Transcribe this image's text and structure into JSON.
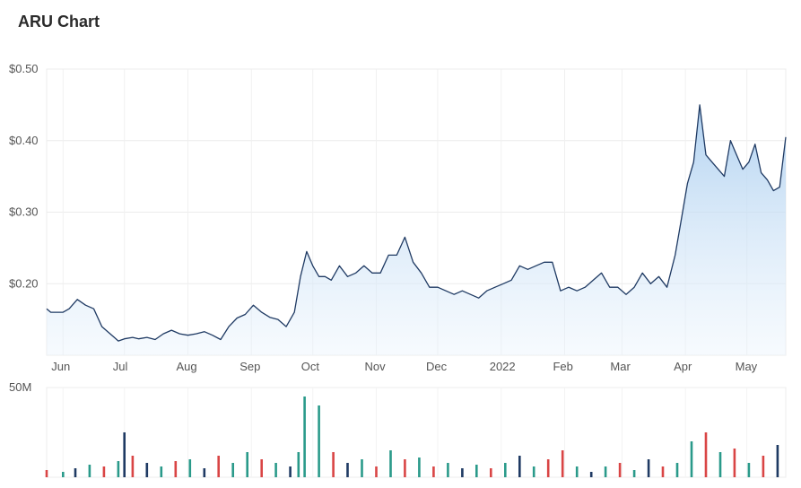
{
  "title": "ARU Chart",
  "chart_data": [
    {
      "type": "area",
      "y_tick_labels": [
        "$0.50",
        "$0.40",
        "$0.30",
        "$0.20"
      ],
      "y_tick_values": [
        0.5,
        0.4,
        0.3,
        0.2
      ],
      "ylim": [
        0.1,
        0.5
      ],
      "x_tick_labels": [
        "Jun",
        "Jul",
        "Aug",
        "Sep",
        "Oct",
        "Nov",
        "Dec",
        "2022",
        "Feb",
        "Mar",
        "Apr",
        "May"
      ],
      "x_tick_dates": [
        "2021-06-01",
        "2021-07-01",
        "2021-08-01",
        "2021-09-01",
        "2021-10-01",
        "2021-11-01",
        "2021-12-01",
        "2022-01-01",
        "2022-02-01",
        "2022-03-01",
        "2022-04-01",
        "2022-05-01"
      ],
      "xlim": [
        "2021-05-24",
        "2022-05-20"
      ],
      "grid": true,
      "line_color": "#1f3a63",
      "fill_color": "#bcd9f2",
      "series": [
        {
          "x": [
            "2021-05-24",
            "2021-05-26",
            "2021-05-28",
            "2021-06-01",
            "2021-06-04",
            "2021-06-08",
            "2021-06-12",
            "2021-06-16",
            "2021-06-20",
            "2021-06-24",
            "2021-06-28",
            "2021-07-01",
            "2021-07-05",
            "2021-07-08",
            "2021-07-12",
            "2021-07-16",
            "2021-07-20",
            "2021-07-24",
            "2021-07-28",
            "2021-08-01",
            "2021-08-05",
            "2021-08-09",
            "2021-08-13",
            "2021-08-17",
            "2021-08-21",
            "2021-08-25",
            "2021-08-29",
            "2021-09-02",
            "2021-09-06",
            "2021-09-10",
            "2021-09-14",
            "2021-09-18",
            "2021-09-22",
            "2021-09-25",
            "2021-09-28",
            "2021-10-01",
            "2021-10-04",
            "2021-10-07",
            "2021-10-10",
            "2021-10-14",
            "2021-10-18",
            "2021-10-22",
            "2021-10-26",
            "2021-10-30",
            "2021-11-03",
            "2021-11-07",
            "2021-11-11",
            "2021-11-15",
            "2021-11-19",
            "2021-11-23",
            "2021-11-27",
            "2021-12-01",
            "2021-12-05",
            "2021-12-09",
            "2021-12-13",
            "2021-12-17",
            "2021-12-21",
            "2021-12-25",
            "2021-12-29",
            "2022-01-02",
            "2022-01-06",
            "2022-01-10",
            "2022-01-14",
            "2022-01-18",
            "2022-01-22",
            "2022-01-26",
            "2022-01-30",
            "2022-02-03",
            "2022-02-07",
            "2022-02-11",
            "2022-02-15",
            "2022-02-19",
            "2022-02-23",
            "2022-02-27",
            "2022-03-03",
            "2022-03-07",
            "2022-03-11",
            "2022-03-15",
            "2022-03-19",
            "2022-03-23",
            "2022-03-27",
            "2022-03-30",
            "2022-04-02",
            "2022-04-05",
            "2022-04-08",
            "2022-04-11",
            "2022-04-14",
            "2022-04-17",
            "2022-04-20",
            "2022-04-23",
            "2022-04-26",
            "2022-04-29",
            "2022-05-02",
            "2022-05-05",
            "2022-05-08",
            "2022-05-11",
            "2022-05-14",
            "2022-05-17",
            "2022-05-20"
          ],
          "values": [
            0.165,
            0.16,
            0.16,
            0.16,
            0.165,
            0.178,
            0.17,
            0.165,
            0.14,
            0.13,
            0.12,
            0.123,
            0.125,
            0.123,
            0.125,
            0.122,
            0.13,
            0.135,
            0.13,
            0.128,
            0.13,
            0.133,
            0.128,
            0.122,
            0.14,
            0.152,
            0.157,
            0.17,
            0.16,
            0.153,
            0.15,
            0.14,
            0.16,
            0.21,
            0.245,
            0.225,
            0.21,
            0.21,
            0.205,
            0.225,
            0.21,
            0.215,
            0.225,
            0.215,
            0.215,
            0.24,
            0.24,
            0.265,
            0.23,
            0.215,
            0.195,
            0.195,
            0.19,
            0.185,
            0.19,
            0.185,
            0.18,
            0.19,
            0.195,
            0.2,
            0.205,
            0.225,
            0.22,
            0.225,
            0.23,
            0.23,
            0.19,
            0.195,
            0.19,
            0.195,
            0.205,
            0.215,
            0.195,
            0.195,
            0.185,
            0.195,
            0.215,
            0.2,
            0.21,
            0.195,
            0.24,
            0.29,
            0.34,
            0.37,
            0.45,
            0.38,
            0.37,
            0.36,
            0.35,
            0.4,
            0.38,
            0.36,
            0.37,
            0.395,
            0.355,
            0.345,
            0.33,
            0.335,
            0.405
          ]
        }
      ]
    },
    {
      "type": "bar",
      "y_tick_labels": [
        "50M"
      ],
      "y_tick_values": [
        50
      ],
      "ylim": [
        0,
        50
      ],
      "bar_colors": {
        "up": "#2a9a8a",
        "down": "#d94545",
        "neutral": "#1f3a63"
      },
      "series": [
        {
          "x": [
            "2021-05-24",
            "2021-06-01",
            "2021-06-07",
            "2021-06-14",
            "2021-06-21",
            "2021-06-28",
            "2021-07-01",
            "2021-07-05",
            "2021-07-12",
            "2021-07-19",
            "2021-07-26",
            "2021-08-02",
            "2021-08-09",
            "2021-08-16",
            "2021-08-23",
            "2021-08-30",
            "2021-09-06",
            "2021-09-13",
            "2021-09-20",
            "2021-09-24",
            "2021-09-27",
            "2021-10-04",
            "2021-10-11",
            "2021-10-18",
            "2021-10-25",
            "2021-11-01",
            "2021-11-08",
            "2021-11-15",
            "2021-11-22",
            "2021-11-29",
            "2021-12-06",
            "2021-12-13",
            "2021-12-20",
            "2021-12-27",
            "2022-01-03",
            "2022-01-10",
            "2022-01-17",
            "2022-01-24",
            "2022-01-31",
            "2022-02-07",
            "2022-02-14",
            "2022-02-21",
            "2022-02-28",
            "2022-03-07",
            "2022-03-14",
            "2022-03-21",
            "2022-03-28",
            "2022-04-04",
            "2022-04-11",
            "2022-04-18",
            "2022-04-25",
            "2022-05-02",
            "2022-05-09",
            "2022-05-16"
          ],
          "values": [
            4,
            3,
            5,
            7,
            6,
            9,
            25,
            12,
            8,
            6,
            9,
            10,
            5,
            12,
            8,
            14,
            10,
            8,
            6,
            14,
            45,
            40,
            14,
            8,
            10,
            6,
            15,
            10,
            11,
            6,
            8,
            5,
            7,
            5,
            8,
            12,
            6,
            10,
            15,
            6,
            3,
            6,
            8,
            4,
            10,
            6,
            8,
            20,
            25,
            14,
            16,
            8,
            12,
            18
          ],
          "direction": [
            "down",
            "up",
            "neutral",
            "up",
            "down",
            "up",
            "neutral",
            "down",
            "neutral",
            "up",
            "down",
            "up",
            "neutral",
            "down",
            "up",
            "up",
            "down",
            "up",
            "neutral",
            "up",
            "up",
            "up",
            "down",
            "neutral",
            "up",
            "down",
            "up",
            "down",
            "up",
            "down",
            "up",
            "neutral",
            "up",
            "down",
            "up",
            "neutral",
            "up",
            "down",
            "down",
            "up",
            "neutral",
            "up",
            "down",
            "up",
            "neutral",
            "down",
            "up",
            "up",
            "down",
            "up",
            "down",
            "up",
            "down",
            "neutral"
          ]
        }
      ]
    }
  ]
}
